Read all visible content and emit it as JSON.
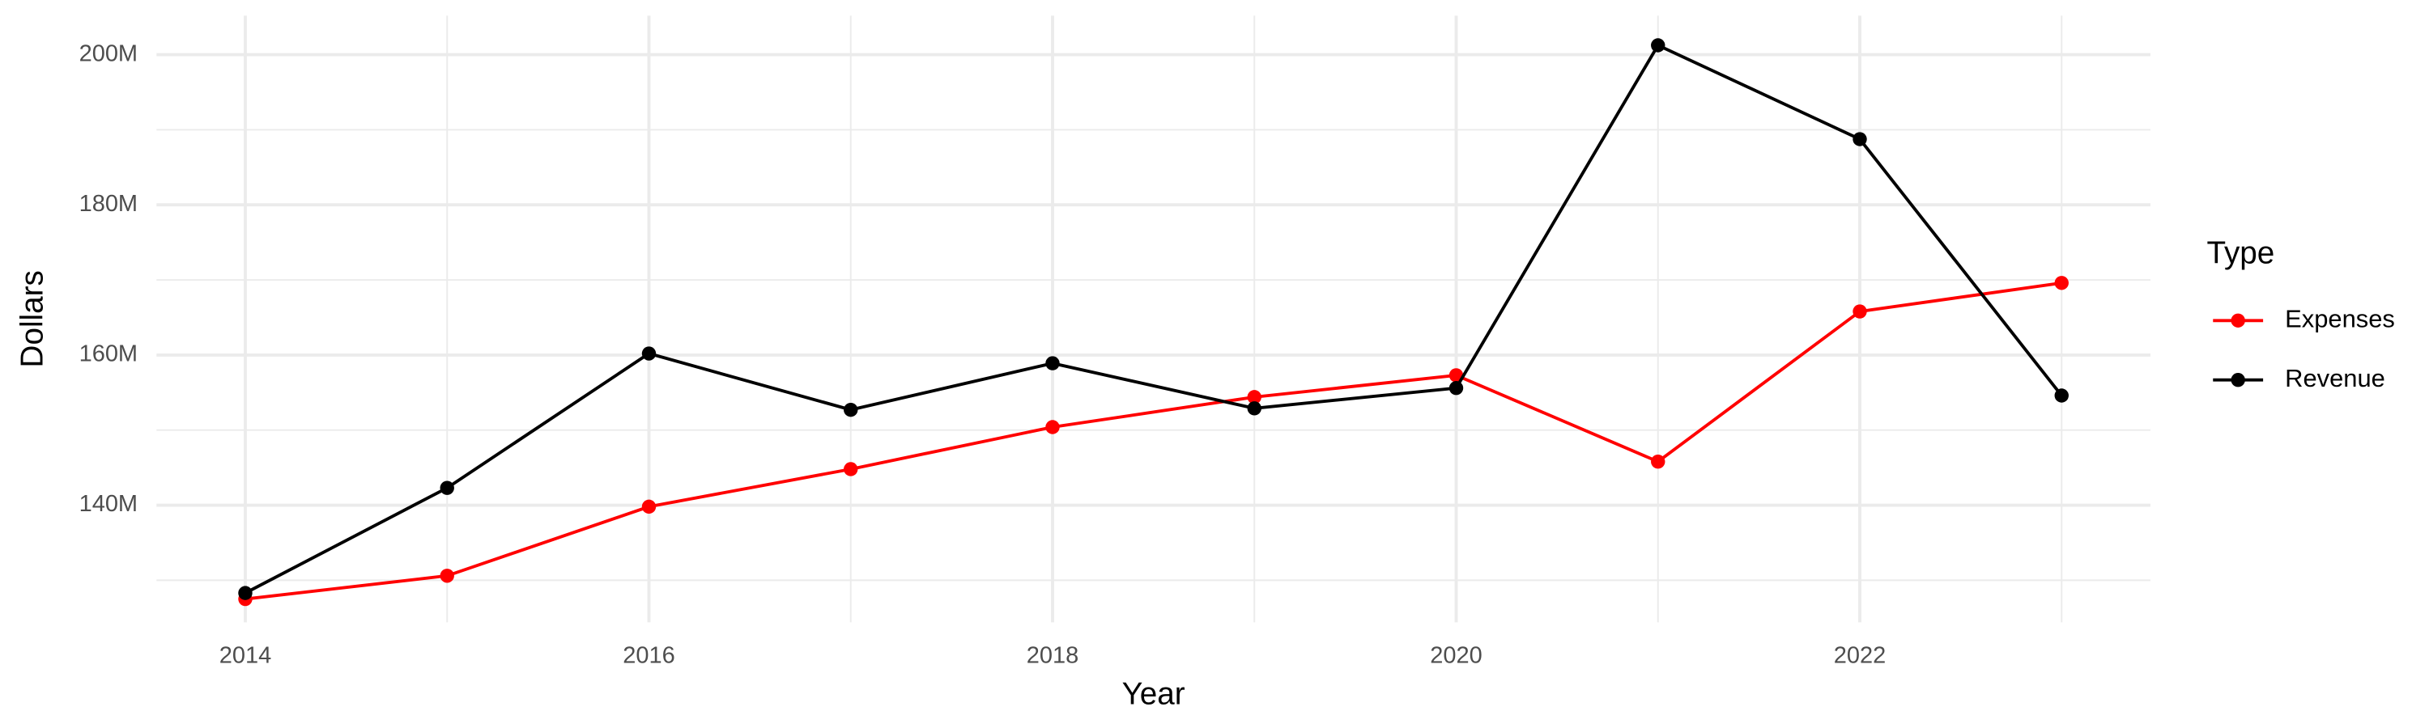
{
  "chart_data": {
    "type": "line",
    "x_label": "Year",
    "y_label": "Dollars",
    "legend_title": "Type",
    "legend_position": "right",
    "grid": true,
    "x": [
      2014,
      2015,
      2016,
      2017,
      2018,
      2019,
      2020,
      2021,
      2022,
      2023
    ],
    "series": [
      {
        "name": "Expenses",
        "color": "#ff0000",
        "values": [
          127500000,
          130600000,
          139800000,
          144800000,
          150400000,
          154400000,
          157300000,
          145800000,
          165800000,
          169600000
        ]
      },
      {
        "name": "Revenue",
        "color": "#000000",
        "values": [
          128300000,
          142300000,
          160200000,
          152700000,
          158900000,
          152900000,
          155600000,
          201250000,
          188750000,
          154600000
        ]
      }
    ],
    "xlim": [
      2013.56,
      2023.44
    ],
    "xticks": [
      2014,
      2016,
      2018,
      2020,
      2022
    ],
    "xminorticks": [
      2015,
      2017,
      2019,
      2021,
      2023
    ],
    "ylim": [
      124400000,
      205200000
    ],
    "yticks": [
      {
        "value": 140000000,
        "label": "140M"
      },
      {
        "value": 160000000,
        "label": "160M"
      },
      {
        "value": 180000000,
        "label": "180M"
      },
      {
        "value": 200000000,
        "label": "200M"
      }
    ],
    "yminorticks": [
      130000000,
      150000000,
      170000000,
      190000000
    ]
  }
}
